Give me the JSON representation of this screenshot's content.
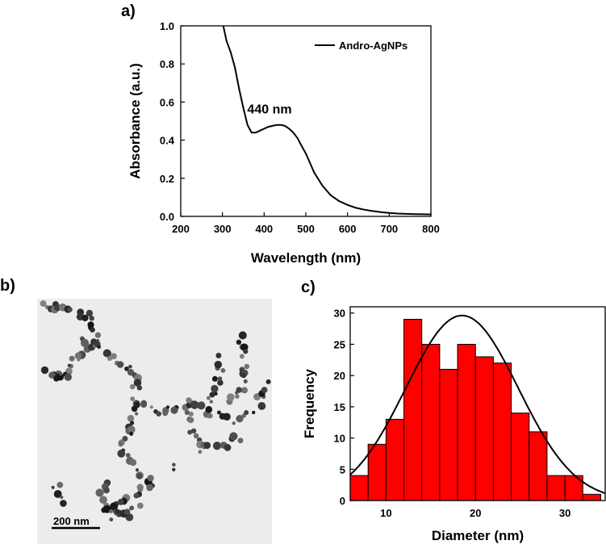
{
  "figure": {
    "panel_labels": [
      "a)",
      "b)",
      "c)"
    ]
  },
  "micrograph": {
    "scale_bar_label": "200 nm"
  },
  "chart_data": [
    {
      "type": "line",
      "panel": "a)",
      "title": "",
      "xlabel": "Wavelength (nm)",
      "ylabel": "Absorbance (a.u.)",
      "xlim": [
        200,
        800
      ],
      "ylim": [
        0,
        1.0
      ],
      "xticks": [
        "200",
        "300",
        "400",
        "500",
        "600",
        "700",
        "800"
      ],
      "yticks": [
        "0.0",
        "0.2",
        "0.4",
        "0.6",
        "0.8",
        "1.0"
      ],
      "legend": {
        "position": "top-right",
        "entries": [
          "Andro-AgNPs"
        ]
      },
      "annotations": [
        {
          "text": "440 nm",
          "x": 440,
          "y": 0.48
        }
      ],
      "grid": false,
      "series": [
        {
          "name": "Andro-AgNPs",
          "color": "#000000",
          "x": [
            302,
            310,
            320,
            330,
            340,
            350,
            360,
            370,
            380,
            390,
            400,
            410,
            420,
            430,
            440,
            450,
            460,
            470,
            480,
            490,
            500,
            510,
            520,
            540,
            560,
            580,
            600,
            620,
            640,
            660,
            680,
            700,
            720,
            740,
            760,
            780,
            800
          ],
          "y": [
            1.0,
            0.92,
            0.86,
            0.78,
            0.67,
            0.57,
            0.48,
            0.44,
            0.44,
            0.45,
            0.46,
            0.47,
            0.475,
            0.48,
            0.48,
            0.475,
            0.46,
            0.44,
            0.41,
            0.37,
            0.33,
            0.28,
            0.23,
            0.16,
            0.11,
            0.08,
            0.06,
            0.045,
            0.035,
            0.028,
            0.022,
            0.018,
            0.015,
            0.013,
            0.012,
            0.011,
            0.01
          ]
        }
      ]
    },
    {
      "type": "bar",
      "panel": "c)",
      "title": "",
      "xlabel": "Diameter (nm)",
      "ylabel": "Frequency",
      "xlim": [
        6,
        34.5
      ],
      "ylim": [
        0,
        31
      ],
      "xticks": [
        "10",
        "20",
        "30"
      ],
      "yticks": [
        "0",
        "5",
        "10",
        "15",
        "20",
        "25",
        "30"
      ],
      "bin_width": 2,
      "bin_centers": [
        7,
        9,
        11,
        13,
        15,
        17,
        19,
        21,
        23,
        25,
        27,
        29,
        31,
        33
      ],
      "values": [
        4,
        9,
        13,
        29,
        25,
        21,
        25,
        23,
        22,
        14,
        11,
        4,
        4,
        1
      ],
      "bar_color": "#ff0000",
      "fit": {
        "type": "gaussian",
        "mean": 18.5,
        "sigma": 6.3,
        "amplitude": 29.6,
        "color": "#000000"
      },
      "grid": false
    }
  ]
}
